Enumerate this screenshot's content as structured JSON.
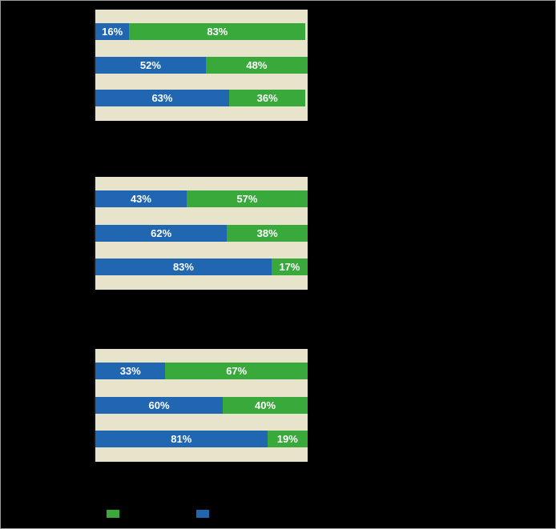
{
  "colors": {
    "background": "#000000",
    "outer_border": "#9a9a9a",
    "panel_background": "#e8e4cc",
    "axis_line": "#141414",
    "blue_series": "#2066b0",
    "green_series": "#3aa93c",
    "bar_label_text": "#ffffff"
  },
  "legend": {
    "items": [
      {
        "swatch": "green-square",
        "color": "#3aa93c"
      },
      {
        "swatch": "blue-square",
        "color": "#2066b0"
      }
    ]
  },
  "chart_data": [
    {
      "type": "bar",
      "orientation": "horizontal",
      "stacked": true,
      "axis_range": [
        0,
        100
      ],
      "grid": false,
      "categories": [
        "",
        "",
        ""
      ],
      "series": [
        {
          "name": "blue",
          "values": [
            16,
            52,
            63
          ]
        },
        {
          "name": "green",
          "values": [
            83,
            48,
            36
          ]
        }
      ],
      "rows": [
        {
          "segments": [
            {
              "series": "blue",
              "value": 16,
              "label": "16%"
            },
            {
              "series": "green",
              "value": 83,
              "label": "83%"
            }
          ]
        },
        {
          "segments": [
            {
              "series": "blue",
              "value": 52,
              "label": "52%"
            },
            {
              "series": "green",
              "value": 48,
              "label": "48%"
            }
          ]
        },
        {
          "segments": [
            {
              "series": "blue",
              "value": 63,
              "label": "63%"
            },
            {
              "series": "green",
              "value": 36,
              "label": "36%"
            }
          ]
        }
      ]
    },
    {
      "type": "bar",
      "orientation": "horizontal",
      "stacked": true,
      "axis_range": [
        0,
        100
      ],
      "grid": false,
      "categories": [
        "",
        "",
        ""
      ],
      "series": [
        {
          "name": "blue",
          "values": [
            43,
            62,
            83
          ]
        },
        {
          "name": "green",
          "values": [
            57,
            38,
            17
          ]
        }
      ],
      "rows": [
        {
          "segments": [
            {
              "series": "blue",
              "value": 43,
              "label": "43%"
            },
            {
              "series": "green",
              "value": 57,
              "label": "57%"
            }
          ]
        },
        {
          "segments": [
            {
              "series": "blue",
              "value": 62,
              "label": "62%"
            },
            {
              "series": "green",
              "value": 38,
              "label": "38%"
            }
          ]
        },
        {
          "segments": [
            {
              "series": "blue",
              "value": 83,
              "label": "83%"
            },
            {
              "series": "green",
              "value": 17,
              "label": "17%"
            }
          ]
        }
      ]
    },
    {
      "type": "bar",
      "orientation": "horizontal",
      "stacked": true,
      "axis_range": [
        0,
        100
      ],
      "grid": false,
      "categories": [
        "",
        "",
        ""
      ],
      "series": [
        {
          "name": "blue",
          "values": [
            33,
            60,
            81
          ]
        },
        {
          "name": "green",
          "values": [
            67,
            40,
            19
          ]
        }
      ],
      "rows": [
        {
          "segments": [
            {
              "series": "blue",
              "value": 33,
              "label": "33%"
            },
            {
              "series": "green",
              "value": 67,
              "label": "67%"
            }
          ]
        },
        {
          "segments": [
            {
              "series": "blue",
              "value": 60,
              "label": "60%"
            },
            {
              "series": "green",
              "value": 40,
              "label": "40%"
            }
          ]
        },
        {
          "segments": [
            {
              "series": "blue",
              "value": 81,
              "label": "81%"
            },
            {
              "series": "green",
              "value": 19,
              "label": "19%"
            }
          ]
        }
      ]
    }
  ]
}
